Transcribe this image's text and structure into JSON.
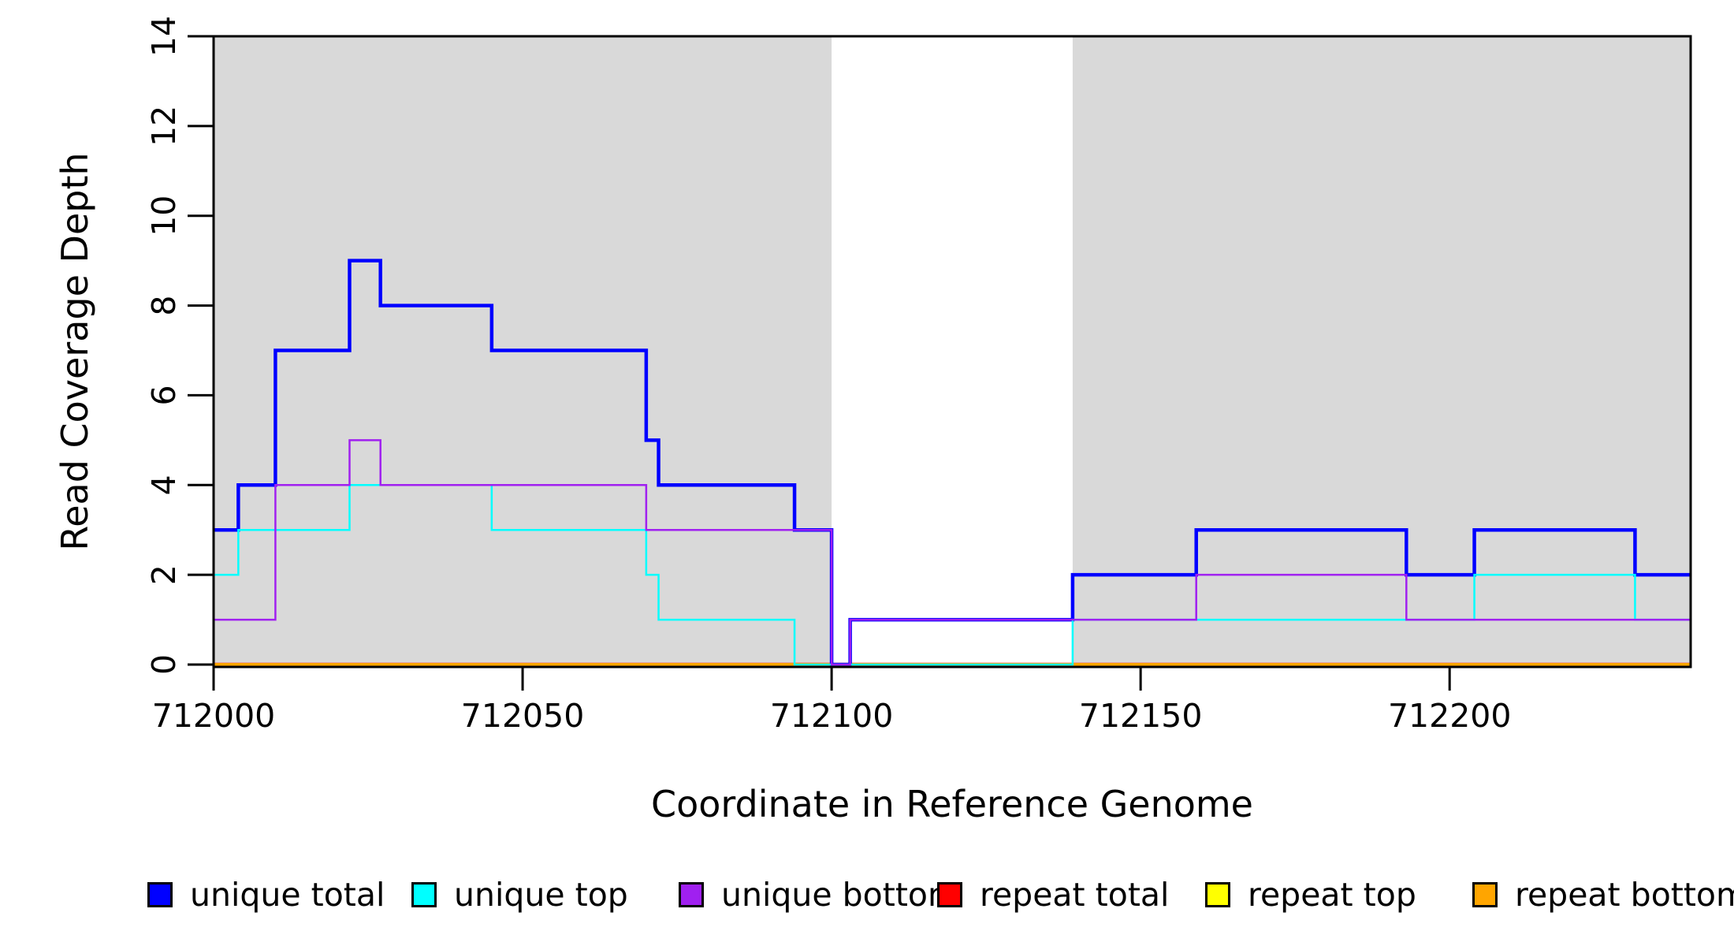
{
  "axes": {
    "x": {
      "title": "Coordinate in Reference Genome"
    },
    "y": {
      "title": "Read Coverage Depth"
    }
  },
  "legend": [
    {
      "label": "unique total",
      "color": "#0000FF"
    },
    {
      "label": "unique top",
      "color": "#00FFFF"
    },
    {
      "label": "unique bottom",
      "color": "#A020F0"
    },
    {
      "label": "repeat total",
      "color": "#FF0000"
    },
    {
      "label": "repeat top",
      "color": "#FFFF00"
    },
    {
      "label": "repeat bottom",
      "color": "#FFA500"
    }
  ],
  "colors": {
    "shade": "#D9D9D9",
    "axis": "#000000",
    "background": "#FFFFFF"
  },
  "chart_data": {
    "type": "line",
    "subtype": "step-coverage",
    "title": "",
    "xlabel": "Coordinate in Reference Genome",
    "ylabel": "Read Coverage Depth",
    "xlim": [
      712000,
      712239
    ],
    "ylim": [
      0,
      14
    ],
    "x_ticks": [
      712000,
      712050,
      712100,
      712150,
      712200
    ],
    "y_ticks": [
      0,
      2,
      4,
      6,
      8,
      10,
      12,
      14
    ],
    "grid": false,
    "legend_position": "bottom",
    "shade_color": "#D9D9D9",
    "shaded_regions": [
      [
        712000,
        712100
      ],
      [
        712139,
        712239
      ]
    ],
    "x_end": 712239,
    "draw_order": [
      "repeat total",
      "repeat top",
      "repeat bottom",
      "unique total",
      "unique top",
      "unique bottom"
    ],
    "series": [
      {
        "name": "unique total",
        "color": "#0000FF",
        "lwd": 4.5,
        "steps": [
          [
            712000,
            3
          ],
          [
            712004,
            4
          ],
          [
            712010,
            7
          ],
          [
            712022,
            9
          ],
          [
            712027,
            8
          ],
          [
            712045,
            7
          ],
          [
            712070,
            5
          ],
          [
            712072,
            4
          ],
          [
            712094,
            3
          ],
          [
            712100,
            0
          ],
          [
            712103,
            1
          ],
          [
            712139,
            2
          ],
          [
            712159,
            3
          ],
          [
            712193,
            2
          ],
          [
            712204,
            3
          ],
          [
            712230,
            2
          ]
        ]
      },
      {
        "name": "unique top",
        "color": "#00FFFF",
        "lwd": 2.5,
        "steps": [
          [
            712000,
            2
          ],
          [
            712004,
            3
          ],
          [
            712022,
            4
          ],
          [
            712045,
            3
          ],
          [
            712070,
            2
          ],
          [
            712072,
            1
          ],
          [
            712094,
            0
          ],
          [
            712139,
            1
          ],
          [
            712204,
            2
          ],
          [
            712230,
            1
          ]
        ]
      },
      {
        "name": "unique bottom",
        "color": "#A020F0",
        "lwd": 2.5,
        "steps": [
          [
            712000,
            1
          ],
          [
            712010,
            4
          ],
          [
            712022,
            5
          ],
          [
            712027,
            4
          ],
          [
            712070,
            3
          ],
          [
            712100,
            0
          ],
          [
            712103,
            1
          ],
          [
            712159,
            2
          ],
          [
            712193,
            1
          ]
        ]
      },
      {
        "name": "repeat total",
        "color": "#FF0000",
        "lwd": 4.5,
        "steps": [
          [
            712000,
            0
          ]
        ]
      },
      {
        "name": "repeat top",
        "color": "#FFFF00",
        "lwd": 2.5,
        "steps": [
          [
            712000,
            0
          ]
        ]
      },
      {
        "name": "repeat bottom",
        "color": "#FFA500",
        "lwd": 4,
        "steps": [
          [
            712000,
            0
          ]
        ]
      }
    ]
  }
}
